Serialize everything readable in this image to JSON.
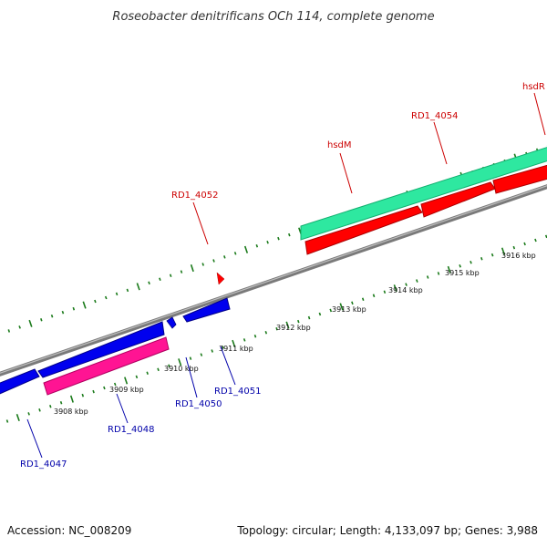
{
  "title": "Roseobacter denitrificans OCh 114, complete genome",
  "footer": {
    "accession": "Accession: NC_008209",
    "summary": "Topology: circular; Length: 4,133,097 bp; Genes: 3,988"
  },
  "colors": {
    "background": "#ffffff",
    "backbone": "#888888",
    "ticks": "#1a7a1a",
    "forward_label": "#cc0000",
    "reverse_label": "#0000aa",
    "reverse_gene": "#0000ee",
    "reverse_rna": "#ff1493",
    "forward_gene": "#ff0000",
    "forward_rna": "#2ee8a0"
  },
  "kbp_labels": [
    "3908 kbp",
    "3909 kbp",
    "3910 kbp",
    "3911 kbp",
    "3912 kbp",
    "3913 kbp",
    "3914 kbp",
    "3915 kbp",
    "3916 kbp"
  ],
  "gene_labels": {
    "forward": [
      "RD1_4052",
      "hsdM",
      "RD1_4054",
      "hsdR"
    ],
    "reverse": [
      "RD1_4047",
      "RD1_4048",
      "RD1_4050",
      "RD1_4051"
    ]
  }
}
